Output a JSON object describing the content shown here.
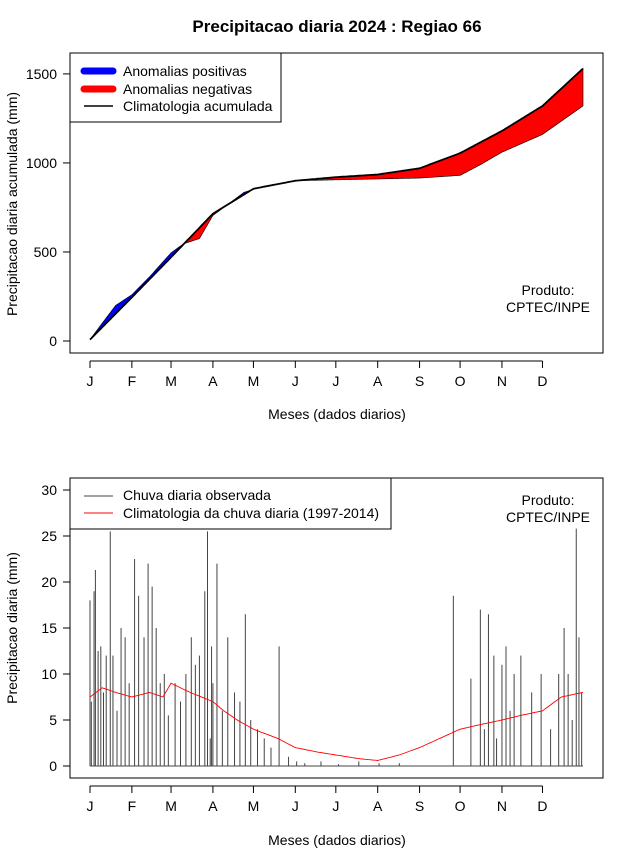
{
  "title": "Precipitacao diaria 2024 : Regiao 66",
  "colors": {
    "positive": "#0000ff",
    "negative": "#ff0000",
    "climatology_line": "#000000",
    "observed_bars": "#444444",
    "clim_daily": "#ff0000"
  },
  "chart_data": [
    {
      "type": "area",
      "ylabel": "Precipitacao diaria acumulada (mm)",
      "xlabel": "Meses (dados diarios)",
      "xlim": [
        1,
        366
      ],
      "ylim": [
        0,
        1550
      ],
      "y_ticks": [
        0,
        500,
        1000,
        1500
      ],
      "month_ticks_day": [
        1,
        32,
        61,
        92,
        122,
        153,
        183,
        214,
        245,
        275,
        306,
        336
      ],
      "month_labels": [
        "J",
        "F",
        "M",
        "A",
        "M",
        "J",
        "J",
        "A",
        "S",
        "O",
        "N",
        "D"
      ],
      "legend": {
        "position": "top-left",
        "entries": [
          "Anomalias positivas",
          "Anomalias negativas",
          "Climatologia acumulada"
        ]
      },
      "annotation": [
        "Produto:",
        "CPTEC/INPE"
      ],
      "series": [
        {
          "name": "Climatologia acumulada",
          "x": [
            1,
            32,
            61,
            92,
            122,
            153,
            183,
            214,
            245,
            275,
            306,
            336,
            366
          ],
          "values": [
            8,
            245,
            470,
            715,
            855,
            900,
            920,
            935,
            970,
            1055,
            1180,
            1320,
            1530
          ]
        },
        {
          "name": "observed_cumulative",
          "x": [
            1,
            10,
            20,
            32,
            45,
            61,
            70,
            82,
            92,
            100,
            115,
            130,
            153,
            183,
            214,
            245,
            275,
            290,
            306,
            336,
            366
          ],
          "values": [
            8,
            100,
            200,
            260,
            360,
            495,
            545,
            575,
            705,
            750,
            835,
            870,
            900,
            905,
            910,
            915,
            930,
            990,
            1060,
            1160,
            1320
          ]
        }
      ]
    },
    {
      "type": "bar",
      "ylabel": "Precipitacao diaria (mm)",
      "xlabel": "Meses (dados diarios)",
      "xlim": [
        1,
        366
      ],
      "ylim": [
        0,
        30
      ],
      "y_ticks": [
        0,
        5,
        10,
        15,
        20,
        25,
        30
      ],
      "month_ticks_day": [
        1,
        32,
        61,
        92,
        122,
        153,
        183,
        214,
        245,
        275,
        306,
        336
      ],
      "month_labels": [
        "J",
        "F",
        "M",
        "A",
        "M",
        "J",
        "J",
        "A",
        "S",
        "O",
        "N",
        "D"
      ],
      "legend": {
        "position": "top-left",
        "entries": [
          "Chuva diaria observada",
          "Climatologia da chuva diaria (1997-2014)"
        ]
      },
      "annotation": [
        "Produto:",
        "CPTEC/INPE"
      ],
      "series": [
        {
          "name": "Chuva diaria observada",
          "x": [
            1,
            2,
            4,
            5,
            7,
            9,
            11,
            13,
            16,
            18,
            21,
            24,
            27,
            30,
            34,
            37,
            41,
            44,
            47,
            50,
            53,
            56,
            59,
            64,
            68,
            72,
            76,
            79,
            82,
            86,
            88,
            90,
            91,
            92,
            95,
            99,
            103,
            108,
            112,
            116,
            120,
            125,
            130,
            135,
            141,
            148,
            154,
            160,
            172,
            185,
            200,
            215,
            230,
            270,
            283,
            290,
            293,
            296,
            300,
            302,
            306,
            309,
            312,
            315,
            320,
            328,
            335,
            342,
            348,
            352,
            355,
            358,
            361,
            363,
            365
          ],
          "values": [
            18,
            7,
            19,
            21.3,
            12.5,
            13,
            8,
            12,
            25.5,
            12,
            6,
            15,
            14,
            9,
            22.5,
            18.5,
            14,
            22,
            19.5,
            15,
            9,
            10,
            5.5,
            9,
            7,
            10,
            14,
            11,
            12,
            19,
            25.5,
            3,
            13,
            9,
            22,
            6,
            14,
            8,
            7,
            16.5,
            5,
            4,
            3,
            2,
            13,
            1,
            0.5,
            0.3,
            0.5,
            0.2,
            0.5,
            0.3,
            0.3,
            18.5,
            9.5,
            17,
            4,
            16.5,
            12,
            3,
            11,
            13,
            6,
            10,
            12,
            8,
            10,
            4,
            10,
            15,
            10,
            5,
            25.8,
            14,
            8
          ]
        },
        {
          "name": "Climatologia da chuva diaria (1997-2014)",
          "x": [
            1,
            10,
            20,
            32,
            45,
            55,
            61,
            75,
            92,
            100,
            110,
            122,
            140,
            153,
            170,
            183,
            200,
            214,
            230,
            245,
            260,
            275,
            290,
            306,
            320,
            336,
            350,
            366
          ],
          "values": [
            7.5,
            8.5,
            8,
            7.5,
            8,
            7.5,
            9,
            8,
            7,
            6,
            5,
            4,
            3,
            2,
            1.5,
            1.2,
            0.8,
            0.6,
            1.2,
            2,
            3,
            4,
            4.5,
            5,
            5.5,
            6,
            7.5,
            8
          ]
        }
      ]
    }
  ]
}
